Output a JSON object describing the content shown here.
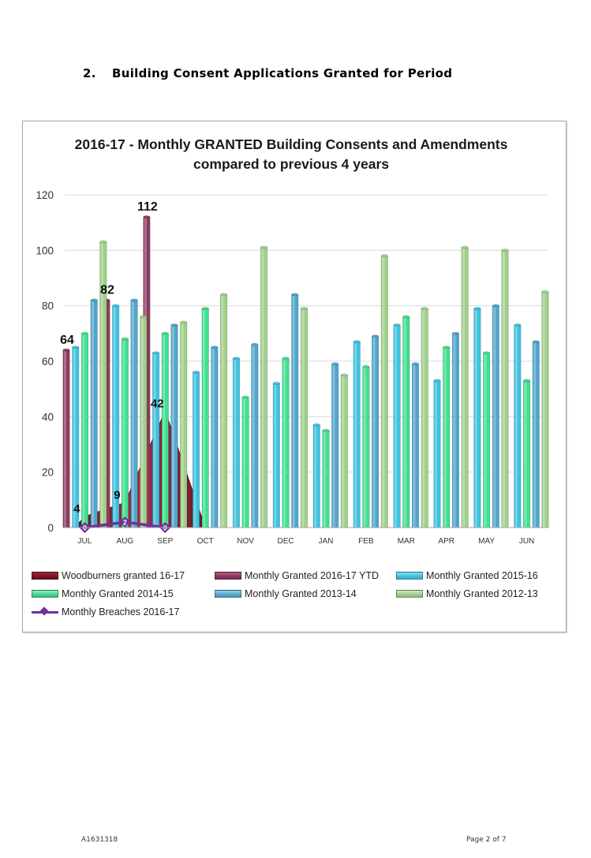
{
  "page": {
    "section_number": "2.",
    "section_title": "Building Consent Applications Granted for Period",
    "footer_ref": "A1631318",
    "footer_page": "Page 2 of 7"
  },
  "chart_data": {
    "type": "bar",
    "title_line1": "2016-17 - Monthly GRANTED Building Consents and Amendments",
    "title_line2": "compared to previous 4 years",
    "categories": [
      "JUL",
      "AUG",
      "SEP",
      "OCT",
      "NOV",
      "DEC",
      "JAN",
      "FEB",
      "MAR",
      "APR",
      "MAY",
      "JUN"
    ],
    "ylim": [
      0,
      120
    ],
    "yticks": [
      0,
      20,
      40,
      60,
      80,
      100,
      120
    ],
    "grid": true,
    "legend_position": "bottom",
    "series": [
      {
        "name": "Woodburners granted 16-17",
        "type": "area",
        "color": "#8b1a2b",
        "values": [
          4,
          9,
          42,
          null,
          null,
          null,
          null,
          null,
          null,
          null,
          null,
          null
        ],
        "labels": [
          "4",
          "9",
          "42"
        ]
      },
      {
        "name": "Monthly Granted 2016-17 YTD",
        "type": "bar",
        "color": "#8e3a5e",
        "values": [
          64,
          82,
          112,
          null,
          null,
          null,
          null,
          null,
          null,
          null,
          null,
          null
        ],
        "labels": [
          "64",
          "82",
          "112"
        ]
      },
      {
        "name": "Monthly Granted  2015-16",
        "type": "bar",
        "color": "#3ec3e0",
        "values": [
          65,
          80,
          63,
          56,
          61,
          52,
          37,
          67,
          73,
          53,
          79,
          73
        ]
      },
      {
        "name": "Monthly Granted 2014-15",
        "type": "bar",
        "color": "#3fe08f",
        "values": [
          70,
          68,
          70,
          79,
          47,
          61,
          35,
          58,
          76,
          65,
          63,
          53
        ]
      },
      {
        "name": "Monthly Granted 2013-14",
        "type": "bar",
        "color": "#4fa6cc",
        "values": [
          82,
          82,
          73,
          65,
          66,
          84,
          59,
          69,
          59,
          70,
          80,
          67
        ]
      },
      {
        "name": "Monthly Granted 2012-13",
        "type": "bar",
        "color": "#9fd08a",
        "values": [
          103,
          76,
          74,
          84,
          101,
          79,
          55,
          98,
          79,
          101,
          100,
          85
        ]
      },
      {
        "name": "Monthly Breaches 2016-17",
        "type": "line",
        "color": "#7030a0",
        "values": [
          0,
          2,
          0,
          null,
          null,
          null,
          null,
          null,
          null,
          null,
          null,
          null
        ],
        "labels": [
          "0",
          "2",
          "0"
        ]
      }
    ]
  }
}
